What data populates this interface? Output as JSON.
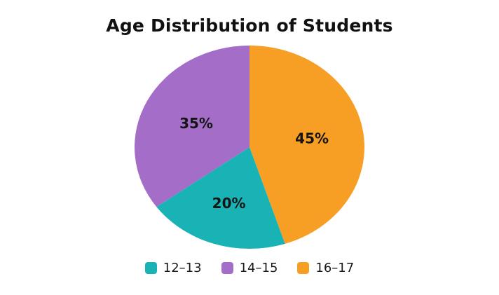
{
  "chart_data": {
    "type": "pie",
    "title": "Age Distribution of Students",
    "categories": [
      "12–13",
      "14–15",
      "16–17"
    ],
    "values": [
      20,
      35,
      45
    ],
    "labels": [
      "20%",
      "35%",
      "45%"
    ],
    "colors": [
      "#1AB3B5",
      "#A46DC7",
      "#F79E24"
    ],
    "legend_position": "bottom"
  }
}
